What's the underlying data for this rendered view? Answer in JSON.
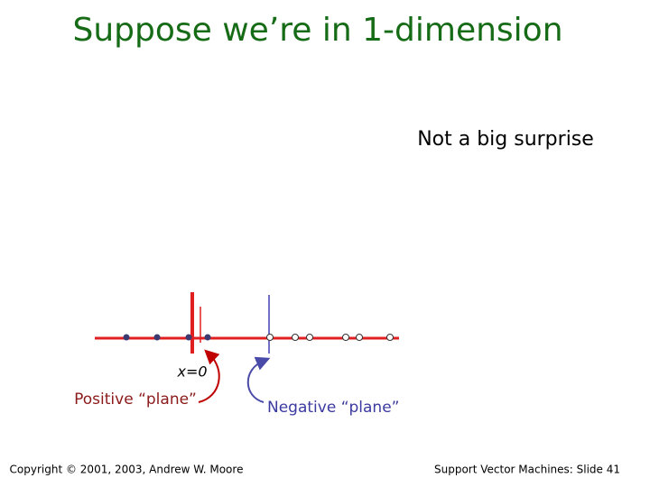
{
  "title": "Suppose we’re in 1-dimension",
  "annotation": "Not a big surprise",
  "labels": {
    "origin": "x=0",
    "positive": "Positive “plane”",
    "negative": "Negative “plane”"
  },
  "footer": {
    "left": "Copyright © 2001, 2003, Andrew W. Moore",
    "right": "Support Vector Machines: Slide 41"
  }
}
